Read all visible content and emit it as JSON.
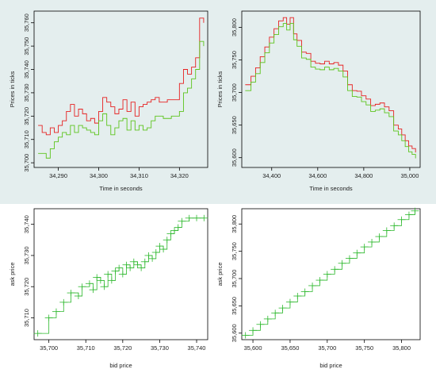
{
  "colors": {
    "ask": "#e62020",
    "bid": "#5cc41c",
    "scatter": "#2db82d",
    "top_background": "#e4eeee",
    "axis": "#000000"
  },
  "chart_data": [
    {
      "type": "line",
      "xlabel": "Time in seconds",
      "ylabel": "Prices in ticks",
      "xlim": [
        34284,
        34327
      ],
      "ylim": [
        35698,
        35765
      ],
      "x_ticks": [
        34290,
        34300,
        34310,
        34320
      ],
      "x_tick_labels": [
        "34,290",
        "34,300",
        "34,310",
        "34,320"
      ],
      "y_ticks": [
        35700,
        35710,
        35720,
        35730,
        35740,
        35750,
        35760
      ],
      "y_tick_labels": [
        "35,700",
        "35,710",
        "35,720",
        "35,730",
        "35,740",
        "35,750",
        "35,760"
      ],
      "series": [
        {
          "role": "ask",
          "x": [
            34285,
            34286,
            34287,
            34288,
            34289,
            34290,
            34291,
            34292,
            34293,
            34294,
            34295,
            34296,
            34297,
            34298,
            34299,
            34300,
            34301,
            34302,
            34303,
            34304,
            34305,
            34306,
            34307,
            34308,
            34309,
            34310,
            34311,
            34312,
            34313,
            34314,
            34315,
            34316,
            34317,
            34318,
            34319,
            34320,
            34321,
            34322,
            34323,
            34324,
            34325,
            34326
          ],
          "values": [
            35716,
            35713,
            35712,
            35715,
            35713,
            35716,
            35718,
            35722,
            35725,
            35720,
            35723,
            35721,
            35718,
            35719,
            35717,
            35722,
            35728,
            35726,
            35724,
            35721,
            35723,
            35727,
            35722,
            35726,
            35720,
            35724,
            35725,
            35726,
            35727,
            35728,
            35726,
            35726,
            35727,
            35727,
            35727,
            35734,
            35740,
            35738,
            35741,
            35745,
            35762,
            35760
          ]
        },
        {
          "role": "bid",
          "x": [
            34285,
            34286,
            34287,
            34288,
            34289,
            34290,
            34291,
            34292,
            34293,
            34294,
            34295,
            34296,
            34297,
            34298,
            34299,
            34300,
            34301,
            34302,
            34303,
            34304,
            34305,
            34306,
            34307,
            34308,
            34309,
            34310,
            34311,
            34312,
            34313,
            34314,
            34315,
            34316,
            34317,
            34318,
            34319,
            34320,
            34321,
            34322,
            34323,
            34324,
            34325,
            34326
          ],
          "values": [
            35704,
            35704,
            35702,
            35706,
            35709,
            35711,
            35713,
            35712,
            35716,
            35713,
            35716,
            35715,
            35714,
            35713,
            35712,
            35718,
            35721,
            35716,
            35712,
            35715,
            35718,
            35719,
            35714,
            35718,
            35714,
            35716,
            35714,
            35715,
            35718,
            35720,
            35720,
            35719,
            35719,
            35720,
            35720,
            35722,
            35730,
            35732,
            35736,
            35740,
            35752,
            35750
          ]
        }
      ]
    },
    {
      "type": "line",
      "xlabel": "Time in seconds",
      "ylabel": "Prices in ticks",
      "xlim": [
        34270,
        35045
      ],
      "ylim": [
        35585,
        35825
      ],
      "x_ticks": [
        34400,
        34600,
        34800,
        35000
      ],
      "x_tick_labels": [
        "34,400",
        "34,600",
        "34,800",
        "35,000"
      ],
      "y_ticks": [
        35600,
        35650,
        35700,
        35750,
        35800
      ],
      "y_tick_labels": [
        "35,600",
        "35,650",
        "35,700",
        "35,750",
        "35,800"
      ],
      "series": [
        {
          "role": "ask",
          "x": [
            34285,
            34310,
            34330,
            34350,
            34370,
            34390,
            34410,
            34430,
            34450,
            34465,
            34480,
            34495,
            34510,
            34530,
            34550,
            34570,
            34590,
            34610,
            34630,
            34650,
            34670,
            34690,
            34710,
            34730,
            34750,
            34770,
            34790,
            34810,
            34830,
            34850,
            34870,
            34890,
            34910,
            34930,
            34950,
            34965,
            34980,
            34995,
            35010,
            35025
          ],
          "values": [
            35712,
            35725,
            35738,
            35755,
            35770,
            35785,
            35798,
            35810,
            35815,
            35805,
            35815,
            35790,
            35780,
            35762,
            35760,
            35748,
            35745,
            35744,
            35748,
            35744,
            35746,
            35742,
            35733,
            35712,
            35703,
            35702,
            35695,
            35690,
            35680,
            35682,
            35684,
            35678,
            35672,
            35650,
            35644,
            35635,
            35626,
            35618,
            35614,
            35608
          ]
        },
        {
          "role": "bid",
          "x": [
            34285,
            34310,
            34330,
            34350,
            34370,
            34390,
            34410,
            34430,
            34450,
            34465,
            34480,
            34495,
            34510,
            34530,
            34550,
            34570,
            34590,
            34610,
            34630,
            34650,
            34670,
            34690,
            34710,
            34730,
            34750,
            34770,
            34790,
            34810,
            34830,
            34850,
            34870,
            34890,
            34910,
            34930,
            34950,
            34965,
            34980,
            34995,
            35010,
            35025
          ],
          "values": [
            35703,
            35716,
            35729,
            35746,
            35761,
            35776,
            35789,
            35801,
            35806,
            35796,
            35806,
            35781,
            35771,
            35753,
            35751,
            35739,
            35736,
            35735,
            35739,
            35735,
            35737,
            35733,
            35724,
            35703,
            35694,
            35693,
            35686,
            35681,
            35671,
            35673,
            35675,
            35669,
            35663,
            35641,
            35635,
            35626,
            35617,
            35609,
            35605,
            35599
          ]
        }
      ]
    },
    {
      "type": "scatter",
      "xlabel": "bid price",
      "ylabel": "ask price",
      "xlim": [
        35696,
        35743
      ],
      "ylim": [
        35703,
        35745
      ],
      "x_ticks": [
        35700,
        35710,
        35720,
        35730,
        35740
      ],
      "x_tick_labels": [
        "35,700",
        "35,710",
        "35,720",
        "35,730",
        "35,740"
      ],
      "y_ticks": [
        35710,
        35720,
        35730,
        35740
      ],
      "y_tick_labels": [
        "35,710",
        "35,720",
        "35,730",
        "35,740"
      ],
      "series": [
        {
          "role": "ask_vs_bid",
          "x": [
            35697,
            35700,
            35702,
            35704,
            35706,
            35708,
            35709,
            35711,
            35712,
            35713,
            35714,
            35715,
            35716,
            35717,
            35718,
            35719,
            35720,
            35721,
            35722,
            35723,
            35724,
            35725,
            35726,
            35727,
            35728,
            35729,
            35730,
            35731,
            35732,
            35733,
            35734,
            35735,
            35736,
            35738,
            35740,
            35742
          ],
          "values": [
            35705,
            35710,
            35712,
            35715,
            35718,
            35717,
            35720,
            35721,
            35719,
            35723,
            35722,
            35720,
            35724,
            35722,
            35725,
            35726,
            35724,
            35727,
            35726,
            35728,
            35727,
            35726,
            35728,
            35730,
            35729,
            35731,
            35733,
            35732,
            35735,
            35737,
            35738,
            35739,
            35741,
            35742,
            35742,
            35742
          ]
        }
      ]
    },
    {
      "type": "scatter",
      "xlabel": "bid price",
      "ylabel": "ask price",
      "xlim": [
        35585,
        35825
      ],
      "ylim": [
        35588,
        35828
      ],
      "x_ticks": [
        35600,
        35650,
        35700,
        35750,
        35800
      ],
      "x_tick_labels": [
        "35,600",
        "35,650",
        "35,700",
        "35,750",
        "35,800"
      ],
      "y_ticks": [
        35600,
        35650,
        35700,
        35750,
        35800
      ],
      "y_tick_labels": [
        "35,600",
        "35,650",
        "35,700",
        "35,750",
        "35,800"
      ],
      "series": [
        {
          "role": "ask_vs_bid",
          "x": [
            35590,
            35600,
            35610,
            35620,
            35630,
            35640,
            35650,
            35660,
            35670,
            35680,
            35690,
            35700,
            35710,
            35720,
            35730,
            35740,
            35750,
            35760,
            35770,
            35780,
            35790,
            35800,
            35810,
            35818
          ],
          "values": [
            35596,
            35605,
            35616,
            35626,
            35637,
            35646,
            35657,
            35668,
            35676,
            35687,
            35697,
            35708,
            35717,
            35728,
            35737,
            35747,
            35758,
            35767,
            35777,
            35788,
            35797,
            35808,
            35817,
            35824
          ]
        }
      ]
    }
  ]
}
